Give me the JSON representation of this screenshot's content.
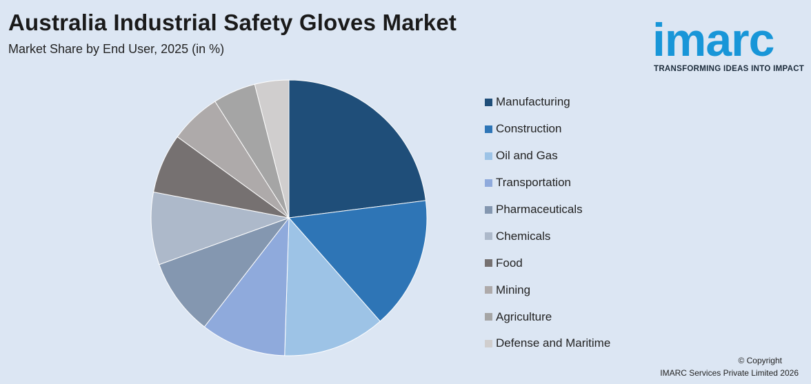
{
  "header": {
    "title": "Australia Industrial Safety Gloves Market",
    "subtitle": "Market Share by End User, 2025 (in %)"
  },
  "logo": {
    "word": "imarc",
    "tagline": "TRANSFORMING IDEAS INTO IMPACT",
    "color": "#1896d8"
  },
  "footer": {
    "copyright": "© Copyright",
    "company": "IMARC Services Private Limited 2026"
  },
  "chart_data": {
    "type": "pie",
    "title": "Australia Industrial Safety Gloves Market",
    "subtitle": "Market Share by End User, 2025 (in %)",
    "legend_position": "right",
    "start_angle": "12 o'clock, clockwise",
    "categories": [
      "Manufacturing",
      "Construction",
      "Oil and Gas",
      "Transportation",
      "Pharmaceuticals",
      "Chemicals",
      "Food",
      "Mining",
      "Agriculture",
      "Defense and Maritime"
    ],
    "values": [
      23.0,
      15.5,
      12.0,
      10.0,
      9.0,
      8.5,
      7.0,
      6.0,
      5.0,
      4.0
    ],
    "colors": [
      "#1f4e79",
      "#2e75b6",
      "#9dc3e6",
      "#8faadc",
      "#8497b0",
      "#adb9ca",
      "#767171",
      "#aeaaaa",
      "#a5a5a5",
      "#d0cece"
    ]
  }
}
